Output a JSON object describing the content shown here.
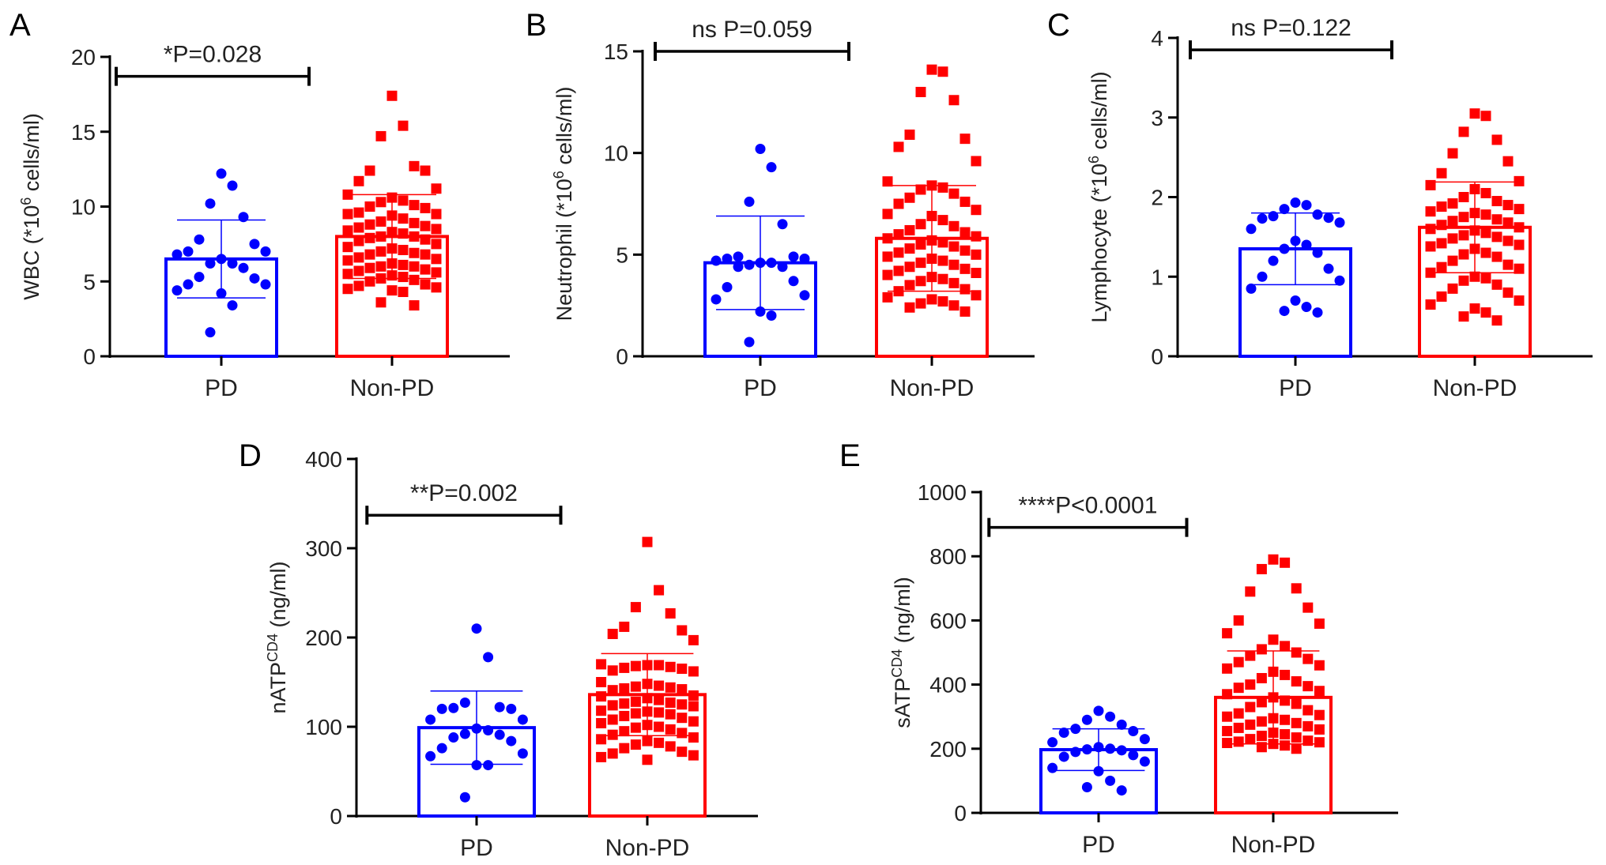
{
  "colors": {
    "PD": "#0000ff",
    "Non-PD": "#ff0000",
    "axis": "#000000"
  },
  "chart_data": [
    {
      "panel": "A",
      "type": "bar",
      "categories": [
        "PD",
        "Non-PD"
      ],
      "ylabel": {
        "pre": "WBC (*10",
        "sup": "6",
        "post": " cells/ml)"
      },
      "ylim": [
        0,
        20
      ],
      "yticks": [
        0,
        5,
        10,
        15,
        20
      ],
      "annotation": "*P=0.028",
      "bracket_y": 18.7,
      "series": [
        {
          "name": "PD",
          "mean": 6.5,
          "sd": 2.6,
          "marker": "circle",
          "points": [
            12.2,
            11.4,
            10.2,
            9.3,
            7.8,
            7.5,
            7.0,
            7.0,
            6.8,
            6.5,
            6.2,
            6.2,
            5.9,
            5.3,
            5.2,
            4.8,
            4.8,
            4.4,
            4.2,
            3.4,
            1.6
          ]
        },
        {
          "name": "Non-PD",
          "mean": 8.0,
          "sd": 2.8,
          "marker": "square",
          "points": [
            17.4,
            15.4,
            14.7,
            12.7,
            12.4,
            12.4,
            11.7,
            11.2,
            10.8,
            10.6,
            10.4,
            10.3,
            10.1,
            10.0,
            9.9,
            9.6,
            9.5,
            9.5,
            9.4,
            9.2,
            9.0,
            8.9,
            8.8,
            8.7,
            8.6,
            8.5,
            8.4,
            8.3,
            8.2,
            8.0,
            8.0,
            7.9,
            7.8,
            7.7,
            7.5,
            7.3,
            7.2,
            7.1,
            7.0,
            6.9,
            6.8,
            6.8,
            6.6,
            6.5,
            6.4,
            6.2,
            6.1,
            6.0,
            6.0,
            5.9,
            5.8,
            5.7,
            5.6,
            5.5,
            5.4,
            5.3,
            5.2,
            5.1,
            5.0,
            4.8,
            4.7,
            4.6,
            4.5,
            4.4,
            4.3,
            3.6,
            3.4
          ]
        }
      ]
    },
    {
      "panel": "B",
      "type": "bar",
      "categories": [
        "PD",
        "Non-PD"
      ],
      "ylabel": {
        "pre": "Neutrophil (*10",
        "sup": "6",
        "post": " cells/ml)"
      },
      "ylim": [
        0,
        15
      ],
      "yticks": [
        0,
        5,
        10,
        15
      ],
      "annotation": "ns P=0.059",
      "bracket_y": 15.0,
      "series": [
        {
          "name": "PD",
          "mean": 4.6,
          "sd": 2.3,
          "marker": "circle",
          "points": [
            10.2,
            9.3,
            7.6,
            6.5,
            4.9,
            4.9,
            4.8,
            4.8,
            4.7,
            4.6,
            4.6,
            4.5,
            4.4,
            4.4,
            3.7,
            3.4,
            3.0,
            2.8,
            2.2,
            2.0,
            0.7
          ]
        },
        {
          "name": "Non-PD",
          "mean": 5.8,
          "sd": 2.6,
          "marker": "square",
          "points": [
            14.1,
            14.0,
            13.0,
            12.6,
            10.9,
            10.7,
            10.3,
            9.6,
            8.6,
            8.4,
            8.3,
            8.2,
            8.0,
            7.8,
            7.6,
            7.5,
            7.2,
            7.0,
            6.9,
            6.7,
            6.5,
            6.4,
            6.2,
            6.1,
            6.0,
            5.9,
            5.8,
            5.7,
            5.6,
            5.5,
            5.4,
            5.3,
            5.2,
            5.1,
            5.0,
            4.9,
            4.8,
            4.7,
            4.6,
            4.5,
            4.4,
            4.3,
            4.2,
            4.1,
            4.0,
            3.9,
            3.8,
            3.7,
            3.6,
            3.5,
            3.3,
            3.2,
            3.0,
            2.9,
            2.8,
            2.7,
            2.6,
            2.5,
            2.4,
            2.2
          ]
        }
      ]
    },
    {
      "panel": "C",
      "type": "bar",
      "categories": [
        "PD",
        "Non-PD"
      ],
      "ylabel": {
        "pre": "Lymphocyte (*10",
        "sup": "6",
        "post": " cells/ml)"
      },
      "ylim": [
        0,
        4
      ],
      "yticks": [
        0,
        1,
        2,
        3,
        4
      ],
      "annotation": "ns P=0.122",
      "bracket_y": 3.85,
      "series": [
        {
          "name": "PD",
          "mean": 1.35,
          "sd": 0.45,
          "marker": "circle",
          "points": [
            1.93,
            1.9,
            1.85,
            1.78,
            1.76,
            1.74,
            1.73,
            1.68,
            1.6,
            1.45,
            1.4,
            1.35,
            1.3,
            1.2,
            1.1,
            1.0,
            0.95,
            0.85,
            0.7,
            0.62,
            0.57,
            0.55
          ]
        },
        {
          "name": "Non-PD",
          "mean": 1.62,
          "sd": 0.57,
          "marker": "square",
          "points": [
            3.05,
            3.02,
            2.82,
            2.72,
            2.55,
            2.45,
            2.3,
            2.2,
            2.15,
            2.1,
            2.05,
            2.0,
            1.95,
            1.92,
            1.9,
            1.88,
            1.85,
            1.82,
            1.8,
            1.78,
            1.75,
            1.72,
            1.7,
            1.68,
            1.65,
            1.62,
            1.6,
            1.58,
            1.55,
            1.52,
            1.5,
            1.48,
            1.45,
            1.42,
            1.4,
            1.38,
            1.35,
            1.3,
            1.28,
            1.25,
            1.2,
            1.15,
            1.12,
            1.1,
            1.05,
            1.0,
            0.98,
            0.95,
            0.9,
            0.85,
            0.8,
            0.75,
            0.7,
            0.65,
            0.6,
            0.55,
            0.5,
            0.45
          ]
        }
      ]
    },
    {
      "panel": "D",
      "type": "bar",
      "categories": [
        "PD",
        "Non-PD"
      ],
      "ylabel": {
        "pre": "nATP",
        "sup": "CD4",
        "post": " (ng/ml)"
      },
      "ylim": [
        0,
        400
      ],
      "yticks": [
        0,
        100,
        200,
        300,
        400
      ],
      "annotation": "**P=0.002",
      "bracket_y": 337,
      "series": [
        {
          "name": "PD",
          "mean": 99,
          "sd": 41,
          "marker": "circle",
          "points": [
            210,
            178,
            127,
            122,
            121,
            120,
            120,
            108,
            108,
            98,
            96,
            92,
            91,
            88,
            84,
            76,
            70,
            67,
            57,
            57,
            21
          ]
        },
        {
          "name": "Non-PD",
          "mean": 136,
          "sd": 46,
          "marker": "square",
          "points": [
            307,
            253,
            234,
            227,
            212,
            208,
            204,
            197,
            170,
            169,
            169,
            168,
            167,
            166,
            165,
            163,
            162,
            150,
            148,
            146,
            145,
            144,
            143,
            142,
            141,
            135,
            134,
            132,
            130,
            128,
            127,
            126,
            125,
            124,
            123,
            118,
            117,
            116,
            115,
            114,
            112,
            110,
            108,
            106,
            104,
            102,
            100,
            99,
            97,
            95,
            93,
            91,
            88,
            86,
            84,
            82,
            80,
            78,
            76,
            72,
            70,
            68,
            66,
            63
          ]
        }
      ]
    },
    {
      "panel": "E",
      "type": "bar",
      "categories": [
        "PD",
        "Non-PD"
      ],
      "ylabel": {
        "pre": "sATP",
        "sup": "CD4",
        "post": " (ng/ml)"
      },
      "ylim": [
        0,
        1000
      ],
      "yticks": [
        0,
        200,
        400,
        600,
        800,
        1000
      ],
      "annotation": "****P<0.0001",
      "bracket_y": 890,
      "series": [
        {
          "name": "PD",
          "mean": 197,
          "sd": 65,
          "marker": "circle",
          "points": [
            318,
            300,
            290,
            275,
            262,
            255,
            250,
            230,
            220,
            205,
            200,
            198,
            195,
            190,
            180,
            175,
            160,
            140,
            130,
            100,
            80,
            70
          ]
        },
        {
          "name": "Non-PD",
          "mean": 360,
          "sd": 145,
          "marker": "square",
          "points": [
            790,
            780,
            760,
            700,
            690,
            640,
            600,
            590,
            560,
            540,
            520,
            510,
            500,
            490,
            480,
            470,
            460,
            450,
            440,
            430,
            420,
            410,
            400,
            395,
            390,
            380,
            370,
            360,
            350,
            345,
            340,
            330,
            320,
            310,
            305,
            300,
            295,
            290,
            285,
            280,
            275,
            270,
            265,
            260,
            255,
            250,
            245,
            240,
            235,
            230,
            225,
            222,
            220,
            218,
            215,
            210,
            205,
            200
          ]
        }
      ]
    }
  ]
}
